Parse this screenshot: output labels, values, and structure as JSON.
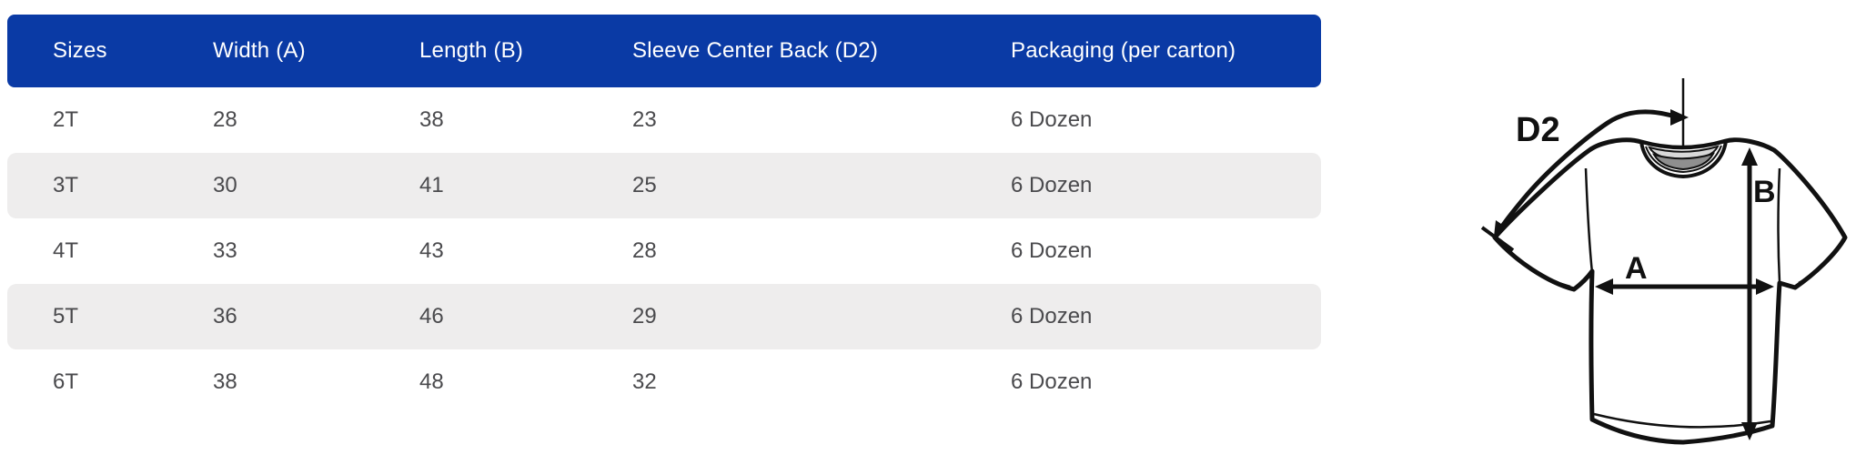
{
  "table": {
    "columns": [
      "Sizes",
      "Width (A)",
      "Length (B)",
      "Sleeve Center Back (D2)",
      "Packaging (per carton)"
    ],
    "column_keys": [
      "sizes",
      "width-a",
      "length-b",
      "sleeve-center-back-d2",
      "packaging-per-carton"
    ],
    "rows": [
      [
        "2T",
        "28",
        "38",
        "23",
        "6 Dozen"
      ],
      [
        "3T",
        "30",
        "41",
        "25",
        "6 Dozen"
      ],
      [
        "4T",
        "33",
        "43",
        "28",
        "6 Dozen"
      ],
      [
        "5T",
        "36",
        "46",
        "29",
        "6 Dozen"
      ],
      [
        "6T",
        "38",
        "48",
        "32",
        "6 Dozen"
      ]
    ]
  },
  "diagram": {
    "labels": {
      "sleeve": "D2",
      "length": "B",
      "width": "A"
    }
  },
  "colors": {
    "header_blue": "#0a3aa5",
    "stripe_gray": "#eeeded",
    "body_text": "#4a4a4d",
    "line_ink": "#111111",
    "collar_light_gray": "#d8d8d8",
    "collar_dark_gray": "#8f8f8f"
  }
}
